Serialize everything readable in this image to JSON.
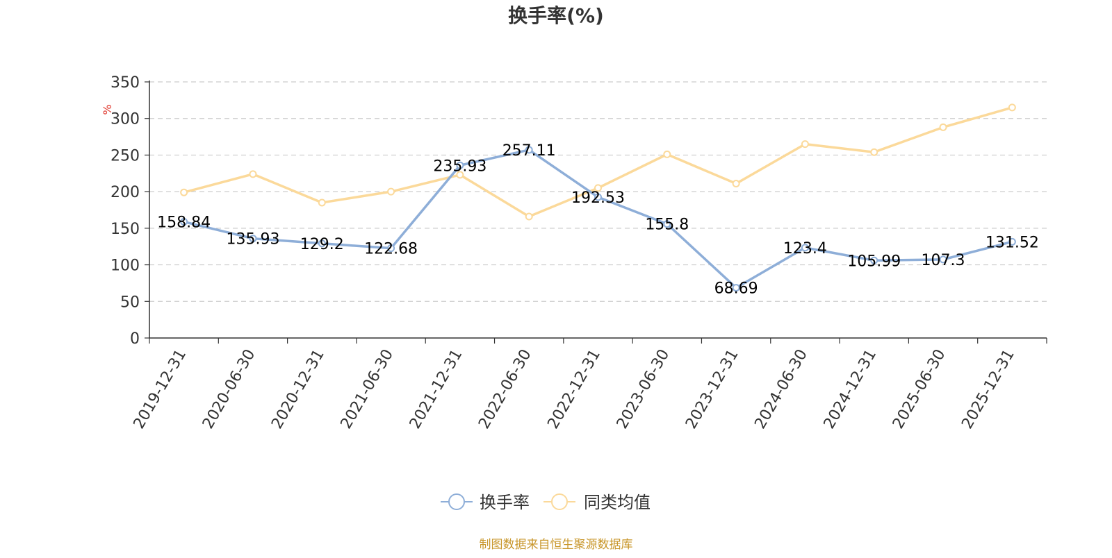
{
  "chart_data": {
    "type": "line",
    "title": "换手率(%)",
    "ylabel": "%",
    "ylim": [
      0,
      350
    ],
    "yticks": [
      0,
      50,
      100,
      150,
      200,
      250,
      300,
      350
    ],
    "categories": [
      "2019-12-31",
      "2020-06-30",
      "2020-12-31",
      "2021-06-30",
      "2021-12-31",
      "2022-06-30",
      "2022-12-31",
      "2023-06-30",
      "2023-12-31",
      "2024-06-30",
      "2024-12-31",
      "2025-06-30",
      "2025-12-31"
    ],
    "series": [
      {
        "name": "换手率",
        "color": "#8eaed8",
        "values": [
          158.84,
          135.93,
          129.2,
          122.68,
          235.93,
          257.11,
          192.53,
          155.8,
          68.69,
          123.4,
          105.99,
          107.3,
          131.52
        ],
        "labels": [
          "158.84",
          "135.93",
          "129.2",
          "122.68",
          "235.93",
          "257.11",
          "192.53",
          "155.8",
          "68.69",
          "123.4",
          "105.99",
          "107.3",
          "131.52"
        ]
      },
      {
        "name": "同类均值",
        "color": "#fbd99a",
        "values": [
          199,
          224,
          185,
          200,
          223,
          166,
          205,
          251,
          211,
          265,
          254,
          288,
          315
        ]
      }
    ],
    "grid": true,
    "legend_position": "bottom-center",
    "source_note": "制图数据来自恒生聚源数据库",
    "source_color": "#c8962a",
    "unit_color": "#e0362c"
  }
}
